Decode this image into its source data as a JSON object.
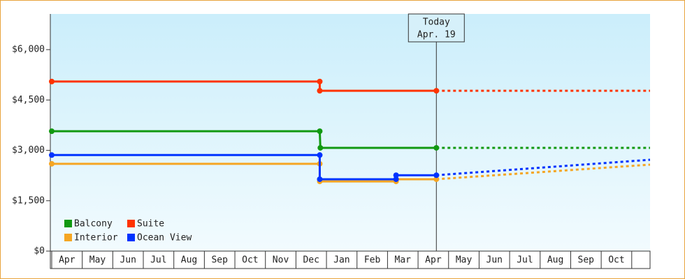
{
  "chart_data": {
    "type": "line",
    "categories": [
      "Apr",
      "May",
      "Jun",
      "Jul",
      "Aug",
      "Sep",
      "Oct",
      "Nov",
      "Dec",
      "Jan",
      "Feb",
      "Mar",
      "Apr",
      "May",
      "Jun",
      "Jul",
      "Aug",
      "Sep",
      "Oct"
    ],
    "xlim": [
      0,
      19.6
    ],
    "ylim": [
      0,
      7000
    ],
    "yticks": [
      {
        "value": 0,
        "label": "$0"
      },
      {
        "value": 1500,
        "label": "$1,500"
      },
      {
        "value": 3000,
        "label": "$3,000"
      },
      {
        "value": 4500,
        "label": "$4,500"
      },
      {
        "value": 6000,
        "label": "$6,000"
      }
    ],
    "legend": "bottom-left",
    "annotation": {
      "x": 12.6,
      "lines": [
        "Today",
        "Apr. 19"
      ]
    },
    "series": [
      {
        "name": "Balcony",
        "color": "#119911",
        "x": [
          0,
          8.78,
          8.8,
          12.6
        ],
        "values": [
          3570,
          3570,
          3075,
          3075
        ],
        "projected": {
          "x": [
            12.6,
            19.6
          ],
          "values": [
            3075,
            3075
          ]
        }
      },
      {
        "name": "Suite",
        "color": "#ff3300",
        "x": [
          0,
          8.78,
          8.78,
          12.6
        ],
        "values": [
          5050,
          5050,
          4775,
          4775
        ],
        "projected": {
          "x": [
            12.6,
            19.6
          ],
          "values": [
            4775,
            4775
          ]
        }
      },
      {
        "name": "Interior",
        "color": "#f5a623",
        "x": [
          0,
          8.78,
          8.78,
          11.28,
          11.28,
          12.6
        ],
        "values": [
          2600,
          2600,
          2075,
          2075,
          2140,
          2140
        ],
        "projected": {
          "x": [
            12.6,
            19.6
          ],
          "values": [
            2140,
            2575
          ]
        }
      },
      {
        "name": "Ocean View",
        "color": "#0033ff",
        "x": [
          0,
          8.78,
          8.78,
          11.28,
          11.28,
          12.6
        ],
        "values": [
          2860,
          2860,
          2140,
          2140,
          2260,
          2260
        ],
        "projected": {
          "x": [
            12.6,
            19.6
          ],
          "values": [
            2260,
            2720
          ]
        }
      }
    ]
  }
}
